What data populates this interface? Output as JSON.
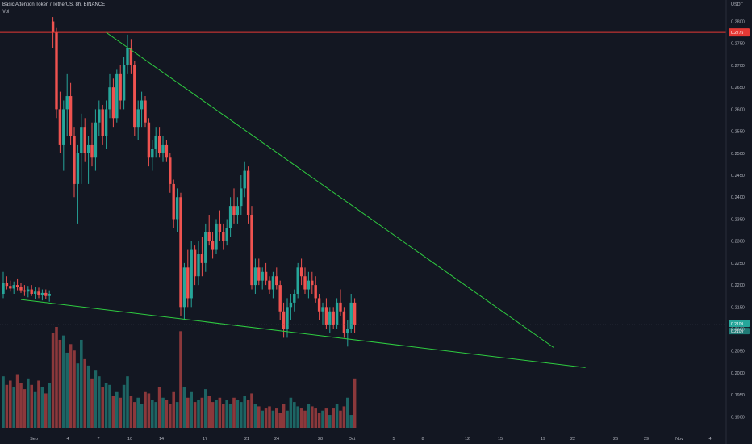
{
  "header": {
    "title": "Basic Attention Token / TetherUS, 8h, BINANCE",
    "volume_label": "Vol",
    "currency": "USDT"
  },
  "colors": {
    "background": "#131722",
    "up": "#26a69a",
    "down": "#ef5350",
    "trendline": "#2ecc40",
    "horizontal_line": "#e53935",
    "axis_text": "#b2b5be"
  },
  "chart_data": {
    "type": "candlestick",
    "title": "Basic Attention Token / TetherUS, 8h, BINANCE",
    "ylabel": "USDT",
    "ylim": [
      0.1875,
      0.2812
    ],
    "y_ticks": [
      "0.2800",
      "0.2750",
      "0.2700",
      "0.2650",
      "0.2600",
      "0.2550",
      "0.2500",
      "0.2450",
      "0.2400",
      "0.2350",
      "0.2300",
      "0.2250",
      "0.2200",
      "0.2150",
      "0.2100",
      "0.2050",
      "0.2000",
      "0.1950",
      "0.1900"
    ],
    "x_ticks": [
      "Sep",
      "4",
      "7",
      "10",
      "14",
      "17",
      "21",
      "24",
      "28",
      "Oct",
      "5",
      "8",
      "12",
      "15",
      "19",
      "22",
      "26",
      "29",
      "Nov",
      "4"
    ],
    "horizontal_line": {
      "price": 0.2775,
      "label": "0.2775"
    },
    "last_price": {
      "label": "0.2109",
      "secondary_label": "0.2109"
    },
    "trendlines": [
      {
        "name": "upper",
        "from": {
          "bar": 29,
          "price": 0.2775
        },
        "to": {
          "bar": 155,
          "price": 0.2058
        }
      },
      {
        "name": "lower",
        "from": {
          "bar": 5,
          "price": 0.2167
        },
        "to": {
          "bar": 164,
          "price": 0.2012
        }
      }
    ],
    "candles": [
      [
        0.218,
        0.223,
        0.217,
        0.2205
      ],
      [
        0.2205,
        0.222,
        0.219,
        0.2198
      ],
      [
        0.2198,
        0.221,
        0.2185,
        0.2192
      ],
      [
        0.2192,
        0.2208,
        0.218,
        0.22
      ],
      [
        0.22,
        0.2215,
        0.2188,
        0.2195
      ],
      [
        0.2195,
        0.2205,
        0.2182,
        0.2188
      ],
      [
        0.2188,
        0.22,
        0.2175,
        0.2185
      ],
      [
        0.2185,
        0.2198,
        0.2172,
        0.219
      ],
      [
        0.219,
        0.22,
        0.2175,
        0.218
      ],
      [
        0.218,
        0.2195,
        0.2168,
        0.2185
      ],
      [
        0.2185,
        0.2194,
        0.217,
        0.2178
      ],
      [
        0.2178,
        0.219,
        0.2165,
        0.2182
      ],
      [
        0.2182,
        0.219,
        0.2168,
        0.2175
      ],
      [
        0.2175,
        0.2188,
        0.2162,
        0.218
      ],
      [
        0.28,
        0.281,
        0.274,
        0.2775
      ],
      [
        0.2775,
        0.2785,
        0.258,
        0.26
      ],
      [
        0.26,
        0.264,
        0.25,
        0.252
      ],
      [
        0.252,
        0.262,
        0.246,
        0.26
      ],
      [
        0.26,
        0.268,
        0.254,
        0.263
      ],
      [
        0.263,
        0.266,
        0.252,
        0.254
      ],
      [
        0.254,
        0.256,
        0.24,
        0.243
      ],
      [
        0.243,
        0.252,
        0.234,
        0.25
      ],
      [
        0.25,
        0.259,
        0.243,
        0.256
      ],
      [
        0.256,
        0.258,
        0.248,
        0.25
      ],
      [
        0.25,
        0.254,
        0.243,
        0.252
      ],
      [
        0.252,
        0.257,
        0.247,
        0.249
      ],
      [
        0.249,
        0.26,
        0.246,
        0.257
      ],
      [
        0.257,
        0.262,
        0.254,
        0.26
      ],
      [
        0.26,
        0.261,
        0.252,
        0.254
      ],
      [
        0.254,
        0.262,
        0.251,
        0.26
      ],
      [
        0.26,
        0.268,
        0.258,
        0.265
      ],
      [
        0.265,
        0.267,
        0.256,
        0.258
      ],
      [
        0.258,
        0.269,
        0.257,
        0.268
      ],
      [
        0.268,
        0.27,
        0.26,
        0.262
      ],
      [
        0.262,
        0.272,
        0.26,
        0.27
      ],
      [
        0.27,
        0.277,
        0.268,
        0.274
      ],
      [
        0.274,
        0.276,
        0.268,
        0.27
      ],
      [
        0.27,
        0.271,
        0.254,
        0.256
      ],
      [
        0.256,
        0.262,
        0.253,
        0.26
      ],
      [
        0.26,
        0.264,
        0.256,
        0.262
      ],
      [
        0.262,
        0.263,
        0.256,
        0.257
      ],
      [
        0.257,
        0.258,
        0.247,
        0.249
      ],
      [
        0.249,
        0.253,
        0.246,
        0.251
      ],
      [
        0.251,
        0.256,
        0.249,
        0.254
      ],
      [
        0.254,
        0.256,
        0.249,
        0.25
      ],
      [
        0.25,
        0.254,
        0.248,
        0.252
      ],
      [
        0.252,
        0.253,
        0.248,
        0.249
      ],
      [
        0.249,
        0.25,
        0.241,
        0.243
      ],
      [
        0.243,
        0.244,
        0.233,
        0.235
      ],
      [
        0.235,
        0.242,
        0.232,
        0.24
      ],
      [
        0.24,
        0.241,
        0.213,
        0.215
      ],
      [
        0.215,
        0.225,
        0.212,
        0.224
      ],
      [
        0.224,
        0.228,
        0.215,
        0.217
      ],
      [
        0.217,
        0.23,
        0.215,
        0.228
      ],
      [
        0.228,
        0.229,
        0.22,
        0.222
      ],
      [
        0.222,
        0.23,
        0.22,
        0.227
      ],
      [
        0.227,
        0.231,
        0.222,
        0.225
      ],
      [
        0.225,
        0.234,
        0.223,
        0.232
      ],
      [
        0.232,
        0.236,
        0.229,
        0.23
      ],
      [
        0.23,
        0.232,
        0.226,
        0.228
      ],
      [
        0.228,
        0.235,
        0.227,
        0.234
      ],
      [
        0.234,
        0.237,
        0.23,
        0.232
      ],
      [
        0.232,
        0.234,
        0.228,
        0.23
      ],
      [
        0.23,
        0.235,
        0.229,
        0.233
      ],
      [
        0.233,
        0.24,
        0.231,
        0.238
      ],
      [
        0.238,
        0.242,
        0.234,
        0.236
      ],
      [
        0.236,
        0.24,
        0.234,
        0.238
      ],
      [
        0.238,
        0.245,
        0.236,
        0.242
      ],
      [
        0.242,
        0.248,
        0.24,
        0.246
      ],
      [
        0.246,
        0.247,
        0.234,
        0.236
      ],
      [
        0.236,
        0.238,
        0.219,
        0.22
      ],
      [
        0.22,
        0.226,
        0.218,
        0.224
      ],
      [
        0.224,
        0.226,
        0.22,
        0.221
      ],
      [
        0.221,
        0.224,
        0.219,
        0.223
      ],
      [
        0.223,
        0.225,
        0.22,
        0.221
      ],
      [
        0.221,
        0.222,
        0.218,
        0.219
      ],
      [
        0.219,
        0.223,
        0.217,
        0.222
      ],
      [
        0.222,
        0.224,
        0.219,
        0.22
      ],
      [
        0.22,
        0.221,
        0.212,
        0.214
      ],
      [
        0.214,
        0.216,
        0.208,
        0.21
      ],
      [
        0.21,
        0.217,
        0.208,
        0.215
      ],
      [
        0.215,
        0.218,
        0.212,
        0.216
      ],
      [
        0.216,
        0.219,
        0.214,
        0.218
      ],
      [
        0.218,
        0.225,
        0.217,
        0.224
      ],
      [
        0.224,
        0.226,
        0.22,
        0.222
      ],
      [
        0.222,
        0.224,
        0.218,
        0.219
      ],
      [
        0.219,
        0.223,
        0.217,
        0.221
      ],
      [
        0.221,
        0.223,
        0.218,
        0.22
      ],
      [
        0.22,
        0.222,
        0.216,
        0.217
      ],
      [
        0.217,
        0.218,
        0.212,
        0.214
      ],
      [
        0.214,
        0.216,
        0.211,
        0.215
      ],
      [
        0.215,
        0.217,
        0.21,
        0.211
      ],
      [
        0.211,
        0.215,
        0.209,
        0.214
      ],
      [
        0.214,
        0.215,
        0.21,
        0.211
      ],
      [
        0.211,
        0.217,
        0.21,
        0.216
      ],
      [
        0.216,
        0.219,
        0.213,
        0.214
      ],
      [
        0.214,
        0.215,
        0.208,
        0.209
      ],
      [
        0.209,
        0.212,
        0.206,
        0.21
      ],
      [
        0.21,
        0.218,
        0.209,
        0.216
      ],
      [
        0.216,
        0.217,
        0.209,
        0.211
      ]
    ],
    "volume": [
      24,
      20,
      22,
      19,
      25,
      21,
      18,
      23,
      20,
      17,
      22,
      19,
      16,
      21,
      44,
      47,
      41,
      43,
      35,
      39,
      36,
      30,
      41,
      32,
      29,
      23,
      27,
      24,
      19,
      21,
      20,
      15,
      17,
      14,
      20,
      24,
      15,
      12,
      14,
      11,
      17,
      16,
      13,
      12,
      19,
      14,
      13,
      11,
      17,
      12,
      45,
      19,
      14,
      17,
      12,
      13,
      14,
      18,
      15,
      12,
      13,
      14,
      11,
      13,
      11,
      14,
      13,
      12,
      15,
      13,
      16,
      11,
      10,
      8,
      9,
      10,
      8,
      9,
      7,
      11,
      8,
      14,
      12,
      10,
      9,
      8,
      11,
      10,
      9,
      7,
      8,
      9,
      6,
      9,
      11,
      8,
      10,
      14,
      6,
      23
    ]
  }
}
